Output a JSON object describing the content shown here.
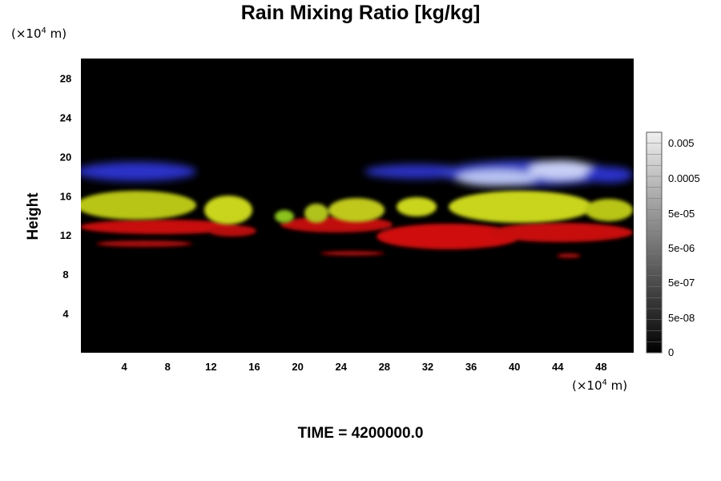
{
  "chart_data": {
    "type": "heatmap",
    "title": "Rain Mixing Ratio [kg/kg]",
    "xlabel": "",
    "ylabel": "Height",
    "x_unit": "(×10⁴ m)",
    "y_unit": "(×10⁴ m)",
    "xlim": [
      0,
      51
    ],
    "ylim": [
      0,
      30
    ],
    "x_ticks": [
      4,
      8,
      12,
      16,
      20,
      24,
      28,
      32,
      36,
      40,
      44,
      48
    ],
    "y_ticks": [
      4,
      8,
      12,
      16,
      20,
      24,
      28
    ],
    "background": "#000000",
    "colorbar": {
      "labels": [
        "0.005",
        "0.0005",
        "5e-05",
        "5e-06",
        "5e-07",
        "5e-08",
        "0"
      ],
      "levels": 20
    },
    "bands": [
      {
        "color": "#2a33c8",
        "x": [
          0,
          51
        ],
        "y": [
          16,
          19.5
        ],
        "note_color": "blue"
      },
      {
        "color": "#c8e08a",
        "x": [
          0,
          51
        ],
        "y": [
          13.5,
          17
        ],
        "note_color": "yellow"
      },
      {
        "color": "#c80a0a",
        "x": [
          0,
          51
        ],
        "y": [
          10,
          14
        ],
        "note_color": "red"
      }
    ]
  },
  "footer": "TIME = 4200000.0",
  "colors": {
    "blue": "#2a33c8",
    "light_blue": "#b8c2f2",
    "yellow": "#c9d41a",
    "green": "#8bc21a",
    "red": "#d40a0a"
  }
}
